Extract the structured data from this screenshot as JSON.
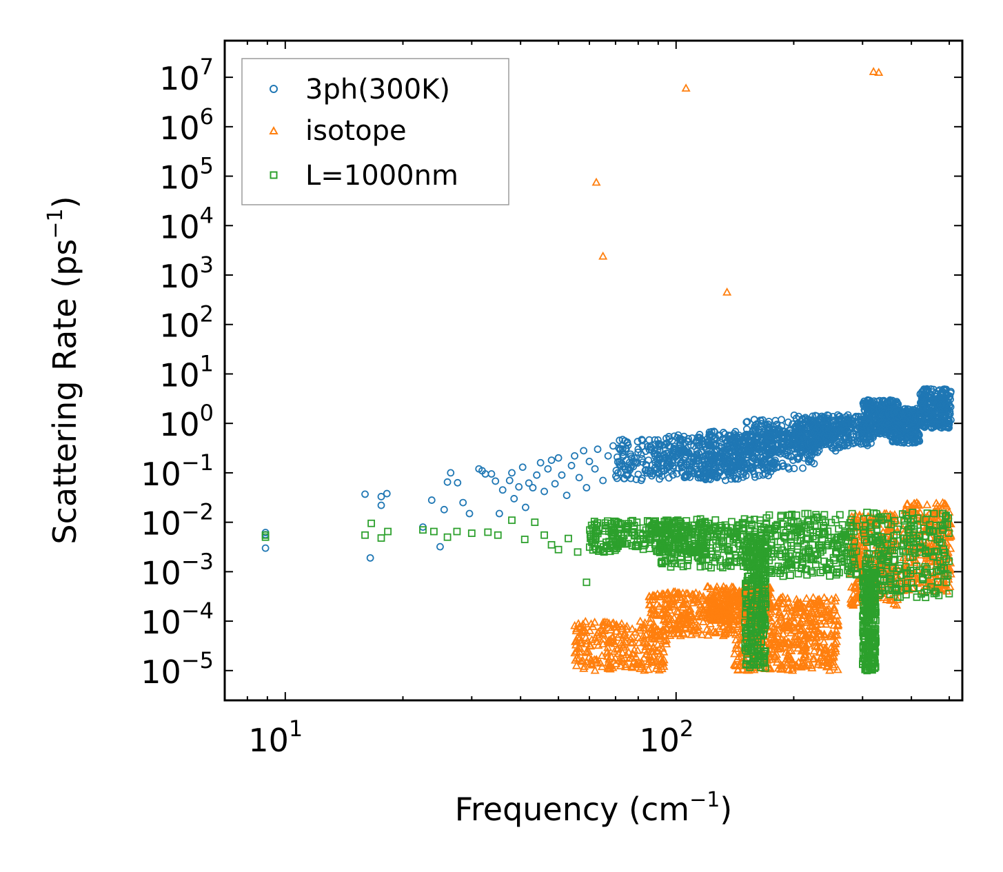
{
  "chart_data": {
    "type": "scatter",
    "title": "",
    "xlabel": "Frequency (cm",
    "xlabel_sup": "−1",
    "xlabel_end": ")",
    "ylabel": "Scattering Rate (ps",
    "ylabel_sup": "−1",
    "ylabel_end": ")",
    "xscale": "log",
    "yscale": "log",
    "xlim": [
      7.0,
      540.0
    ],
    "ylim": [
      2.5e-06,
      55000000.0
    ],
    "x_ticks": [
      {
        "base": "10",
        "exp": "1",
        "value": 10
      },
      {
        "base": "10",
        "exp": "2",
        "value": 100
      }
    ],
    "y_ticks": [
      {
        "base": "10",
        "exp": "7",
        "value": 10000000.0
      },
      {
        "base": "10",
        "exp": "6",
        "value": 1000000.0
      },
      {
        "base": "10",
        "exp": "5",
        "value": 100000.0
      },
      {
        "base": "10",
        "exp": "4",
        "value": 10000.0
      },
      {
        "base": "10",
        "exp": "3",
        "value": 1000.0
      },
      {
        "base": "10",
        "exp": "2",
        "value": 100.0
      },
      {
        "base": "10",
        "exp": "1",
        "value": 10.0
      },
      {
        "base": "10",
        "exp": "0",
        "value": 1.0
      },
      {
        "base": "10",
        "exp": "−1",
        "value": 0.1
      },
      {
        "base": "10",
        "exp": "−2",
        "value": 0.01
      },
      {
        "base": "10",
        "exp": "−3",
        "value": 0.001
      },
      {
        "base": "10",
        "exp": "−4",
        "value": 0.0001
      },
      {
        "base": "10",
        "exp": "−5",
        "value": 1e-05
      }
    ],
    "legend": {
      "position": "top-left",
      "entries": [
        "3ph(300K)",
        "isotope",
        "L=1000nm"
      ]
    },
    "series": [
      {
        "name": "3ph(300K)",
        "marker": "circle",
        "color": "#1f77b4",
        "points": [
          [
            8.9,
            0.0062
          ],
          [
            8.9,
            0.0056
          ],
          [
            8.9,
            0.003
          ],
          [
            16.0,
            0.037
          ],
          [
            16.5,
            0.0019
          ],
          [
            17.6,
            0.033
          ],
          [
            17.6,
            0.022
          ],
          [
            18.2,
            0.038
          ],
          [
            22.5,
            0.008
          ],
          [
            23.7,
            0.028
          ],
          [
            24.9,
            0.0032
          ],
          [
            25.5,
            0.018
          ],
          [
            26.0,
            0.065
          ],
          [
            26.5,
            0.1
          ],
          [
            27.6,
            0.063
          ],
          [
            28.5,
            0.025
          ],
          [
            29.6,
            0.015
          ],
          [
            31.3,
            0.12
          ],
          [
            31.9,
            0.11
          ],
          [
            32.5,
            0.095
          ],
          [
            33.7,
            0.095
          ],
          [
            34.5,
            0.068
          ],
          [
            35.3,
            0.015
          ],
          [
            36.0,
            0.045
          ],
          [
            37.5,
            0.07
          ],
          [
            38.0,
            0.1
          ],
          [
            38.5,
            0.03
          ],
          [
            39.6,
            0.052
          ],
          [
            40.5,
            0.13
          ],
          [
            41.2,
            0.02
          ],
          [
            42.0,
            0.062
          ],
          [
            43.0,
            0.05
          ],
          [
            44.0,
            0.09
          ],
          [
            45.0,
            0.16
          ],
          [
            46.0,
            0.042
          ],
          [
            47.0,
            0.12
          ],
          [
            48.0,
            0.18
          ],
          [
            49.0,
            0.06
          ],
          [
            50.0,
            0.2
          ],
          [
            51.0,
            0.09
          ],
          [
            52.5,
            0.035
          ],
          [
            54.0,
            0.14
          ],
          [
            55.0,
            0.22
          ],
          [
            56.5,
            0.08
          ],
          [
            58.0,
            0.28
          ],
          [
            59.0,
            0.05
          ],
          [
            60.0,
            0.17
          ],
          [
            62.0,
            0.12
          ],
          [
            63.0,
            0.3
          ],
          [
            65.0,
            0.07
          ],
          [
            67.0,
            0.22
          ],
          [
            69.0,
            0.35
          ],
          [
            71.0,
            0.1
          ],
          [
            73.0,
            0.26
          ],
          [
            75.0,
            0.4
          ],
          [
            77.0,
            0.14
          ],
          [
            80.0,
            0.3
          ],
          [
            82.0,
            0.45
          ],
          [
            85.0,
            0.18
          ],
          [
            88.0,
            0.28
          ],
          [
            90.0,
            0.1
          ]
        ],
        "bands": [
          {
            "x": [
              70,
              150
            ],
            "y": [
              0.07,
              0.5
            ]
          },
          {
            "x": [
              90,
              180
            ],
            "y": [
              0.08,
              0.6
            ]
          },
          {
            "x": [
              120,
              230
            ],
            "y": [
              0.12,
              0.7
            ]
          },
          {
            "x": [
              150,
              280
            ],
            "y": [
              0.25,
              1.2
            ]
          },
          {
            "x": [
              200,
              320
            ],
            "y": [
              0.35,
              1.5
            ]
          },
          {
            "x": [
              300,
              370
            ],
            "y": [
              0.6,
              3.0
            ]
          },
          {
            "x": [
              350,
              420
            ],
            "y": [
              0.4,
              2.0
            ]
          },
          {
            "x": [
              420,
              505
            ],
            "y": [
              0.8,
              5.0
            ]
          }
        ]
      },
      {
        "name": "isotope",
        "marker": "triangle",
        "color": "#ff7f0e",
        "points": [
          [
            62.5,
            75000
          ],
          [
            65.0,
            2400
          ],
          [
            106.0,
            6000000
          ],
          [
            135.0,
            450
          ],
          [
            320.0,
            13000000
          ],
          [
            330.0,
            12500000
          ]
        ],
        "bands": [
          {
            "x": [
              55,
              95
            ],
            "y": [
              1e-05,
              0.0001
            ]
          },
          {
            "x": [
              85,
              140
            ],
            "y": [
              5e-05,
              0.0004
            ]
          },
          {
            "x": [
              120,
              175
            ],
            "y": [
              0.0001,
              0.0005
            ]
          },
          {
            "x": [
              140,
              190
            ],
            "y": [
              1e-05,
              0.0004
            ]
          },
          {
            "x": [
              190,
              260
            ],
            "y": [
              1e-05,
              0.0003
            ]
          },
          {
            "x": [
              280,
              370
            ],
            "y": [
              0.0002,
              0.015
            ]
          },
          {
            "x": [
              380,
              505
            ],
            "y": [
              0.0004,
              0.025
            ]
          }
        ]
      },
      {
        "name": "L=1000nm",
        "marker": "square",
        "color": "#2ca02c",
        "points": [
          [
            8.9,
            0.0055
          ],
          [
            8.9,
            0.005
          ],
          [
            16.0,
            0.0055
          ],
          [
            16.6,
            0.0095
          ],
          [
            17.6,
            0.0048
          ],
          [
            18.3,
            0.0065
          ],
          [
            22.5,
            0.007
          ],
          [
            24.0,
            0.0065
          ],
          [
            26.0,
            0.005
          ],
          [
            27.5,
            0.0065
          ],
          [
            30.0,
            0.006
          ],
          [
            33.0,
            0.0063
          ],
          [
            35.0,
            0.0055
          ],
          [
            38.0,
            0.011
          ],
          [
            41.0,
            0.0045
          ],
          [
            43.5,
            0.01
          ],
          [
            46.0,
            0.0055
          ],
          [
            48.0,
            0.0035
          ],
          [
            50.0,
            0.0028
          ],
          [
            53.0,
            0.0047
          ],
          [
            56.0,
            0.0025
          ],
          [
            59.0,
            0.00061
          ],
          [
            62.0,
            0.0045
          ],
          [
            64.0,
            0.0028
          ],
          [
            68.0,
            0.0035
          ]
        ],
        "bands": [
          {
            "x": [
              60,
              120
            ],
            "y": [
              0.0025,
              0.011
            ]
          },
          {
            "x": [
              90,
              170
            ],
            "y": [
              0.0012,
              0.012
            ]
          },
          {
            "x": [
              150,
              170
            ],
            "y": [
              1e-05,
              0.005
            ]
          },
          {
            "x": [
              170,
              290
            ],
            "y": [
              0.0008,
              0.015
            ]
          },
          {
            "x": [
              300,
              325
            ],
            "y": [
              1e-05,
              0.001
            ]
          },
          {
            "x": [
              300,
              500
            ],
            "y": [
              0.0003,
              0.016
            ]
          }
        ]
      }
    ]
  }
}
